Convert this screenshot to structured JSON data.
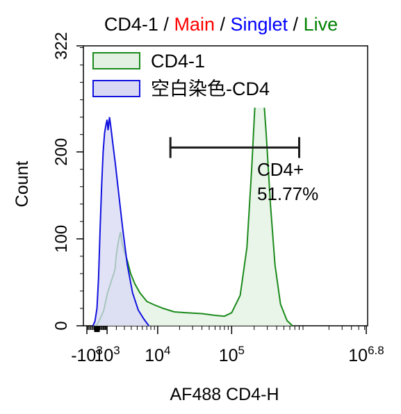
{
  "chart_data": {
    "type": "area",
    "title_parts": [
      {
        "text": "CD4-1",
        "color": "#000000"
      },
      {
        "text": "Main",
        "color": "#ff0000"
      },
      {
        "text": "Singlet",
        "color": "#0000ff"
      },
      {
        "text": "Live",
        "color": "#008000"
      }
    ],
    "title_separator": "/",
    "xlabel": "AF488 CD4-H",
    "ylabel": "Count",
    "ylim": [
      0,
      322
    ],
    "y_ticks": [
      0,
      100,
      200,
      322
    ],
    "x_scale": "biexponential",
    "x_ticks": [
      {
        "base": "-10",
        "exp": "3",
        "value": -1000
      },
      {
        "base": "10",
        "exp": "3",
        "value": 1000
      },
      {
        "base": "10",
        "exp": "4",
        "value": 10000
      },
      {
        "base": "10",
        "exp": "5",
        "value": 100000
      },
      {
        "base": "10",
        "exp": "6.8",
        "value": 6309573
      }
    ],
    "legend_position": "top-left",
    "series": [
      {
        "name": "CD4-1",
        "line_color": "#1a8a1a",
        "fill_color": "#e3f1e3",
        "points": [
          [
            -150,
            0
          ],
          [
            100,
            3
          ],
          [
            250,
            7
          ],
          [
            450,
            12
          ],
          [
            650,
            17
          ],
          [
            850,
            28
          ],
          [
            1050,
            38
          ],
          [
            1250,
            45
          ],
          [
            1450,
            52
          ],
          [
            1650,
            58
          ],
          [
            1850,
            65
          ],
          [
            2000,
            82
          ],
          [
            2150,
            92
          ],
          [
            2300,
            100
          ],
          [
            2500,
            108
          ],
          [
            2700,
            95
          ],
          [
            3000,
            85
          ],
          [
            3400,
            75
          ],
          [
            3900,
            60
          ],
          [
            4600,
            48
          ],
          [
            5500,
            38
          ],
          [
            7000,
            28
          ],
          [
            9000,
            24
          ],
          [
            12000,
            20
          ],
          [
            17000,
            16
          ],
          [
            25000,
            15
          ],
          [
            40000,
            14
          ],
          [
            60000,
            12
          ],
          [
            80000,
            11
          ],
          [
            100000,
            15
          ],
          [
            130000,
            35
          ],
          [
            160000,
            90
          ],
          [
            185000,
            180
          ],
          [
            205000,
            255
          ],
          [
            220000,
            288
          ],
          [
            240000,
            292
          ],
          [
            260000,
            278
          ],
          [
            290000,
            220
          ],
          [
            330000,
            140
          ],
          [
            380000,
            70
          ],
          [
            450000,
            25
          ],
          [
            550000,
            6
          ],
          [
            650000,
            0
          ]
        ]
      },
      {
        "name": "空白染色-CD4",
        "line_color": "#1010e0",
        "fill_color": "#d8d8f4",
        "points": [
          [
            -400,
            0
          ],
          [
            -200,
            5
          ],
          [
            0,
            20
          ],
          [
            150,
            55
          ],
          [
            300,
            110
          ],
          [
            450,
            160
          ],
          [
            600,
            200
          ],
          [
            750,
            222
          ],
          [
            900,
            232
          ],
          [
            1000,
            237
          ],
          [
            1100,
            225
          ],
          [
            1250,
            240
          ],
          [
            1400,
            228
          ],
          [
            1600,
            210
          ],
          [
            1900,
            185
          ],
          [
            2300,
            150
          ],
          [
            2800,
            110
          ],
          [
            3400,
            70
          ],
          [
            4200,
            38
          ],
          [
            5200,
            18
          ],
          [
            6300,
            8
          ],
          [
            7500,
            0
          ]
        ]
      }
    ],
    "gate": {
      "label": "CD4+",
      "percent": "51.77%",
      "x_start": 15000,
      "x_end": 800000,
      "y_level": 205
    }
  }
}
